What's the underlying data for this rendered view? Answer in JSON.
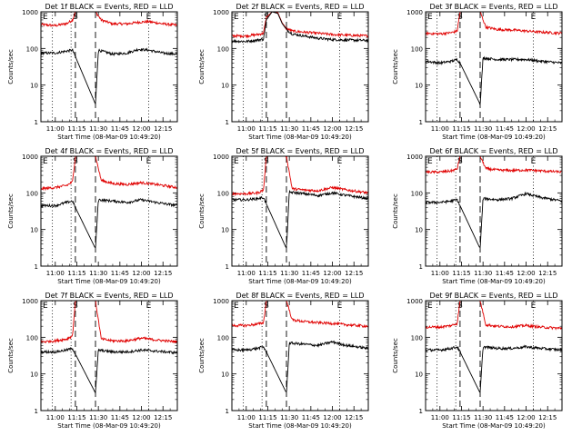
{
  "colors": {
    "events": "#000000",
    "lld": "#e00000",
    "frame": "#000000",
    "background": "#ffffff"
  },
  "chart_data": [
    {
      "type": "line",
      "title": "Det 1f BLACK = Events, RED = LLD",
      "xlabel": "Start Time (08-Mar-09 10:49:20)",
      "ylabel": "Counts/sec",
      "y_scale": "log",
      "ylim": [
        1,
        1000
      ],
      "xlim": [
        "10:50",
        "12:25"
      ],
      "xticks": [
        "11:00",
        "11:15",
        "11:30",
        "11:45",
        "12:00",
        "12:15"
      ],
      "yticks": [
        "1",
        "10",
        "100",
        "1000"
      ],
      "markers": {
        "E1": "E",
        "S": "S",
        "E2": "E"
      },
      "dotted_lines": [
        "10:58",
        "11:11",
        "12:05"
      ],
      "dashed_lines": [
        "11:14",
        "11:28"
      ],
      "series": [
        {
          "name": "LLD",
          "color": "#e00000",
          "x": [
            "10:50",
            "11:00",
            "11:08",
            "11:12",
            "11:14",
            "11:28",
            "11:32",
            "11:40",
            "11:50",
            "11:58",
            "12:05",
            "12:15",
            "12:25"
          ],
          "y": [
            450,
            420,
            480,
            600,
            1000,
            1000,
            600,
            470,
            470,
            520,
            540,
            470,
            430
          ]
        },
        {
          "name": "Events",
          "color": "#000000",
          "x": [
            "10:50",
            "11:00",
            "11:08",
            "11:12",
            "11:14",
            "11:28",
            "11:30",
            "11:40",
            "11:50",
            "11:58",
            "12:05",
            "12:15",
            "12:25"
          ],
          "y": [
            75,
            75,
            85,
            90,
            60,
            3,
            90,
            70,
            75,
            95,
            90,
            75,
            70
          ]
        }
      ]
    },
    {
      "type": "line",
      "title": "Det 2f BLACK = Events, RED = LLD",
      "xlabel": "Start Time (08-Mar-09 10:49:20)",
      "ylabel": "Counts/sec",
      "y_scale": "log",
      "ylim": [
        1,
        1000
      ],
      "xlim": [
        "10:50",
        "12:25"
      ],
      "xticks": [
        "11:00",
        "11:15",
        "11:30",
        "11:45",
        "12:00",
        "12:15"
      ],
      "yticks": [
        "1",
        "10",
        "100",
        "1000"
      ],
      "markers": {
        "E1": "E",
        "S": "S",
        "E2": "E"
      },
      "dotted_lines": [
        "10:58",
        "11:11",
        "12:05"
      ],
      "dashed_lines": [
        "11:14",
        "11:28"
      ],
      "series": [
        {
          "name": "LLD",
          "color": "#e00000",
          "x": [
            "10:50",
            "11:00",
            "11:08",
            "11:12",
            "11:14",
            "11:18",
            "11:22",
            "11:25",
            "11:28",
            "11:32",
            "11:40",
            "11:50",
            "12:00",
            "12:10",
            "12:25"
          ],
          "y": [
            220,
            220,
            240,
            260,
            700,
            1000,
            950,
            500,
            350,
            300,
            280,
            260,
            240,
            230,
            220
          ]
        },
        {
          "name": "Events",
          "color": "#000000",
          "x": [
            "10:50",
            "11:00",
            "11:08",
            "11:12",
            "11:14",
            "11:18",
            "11:22",
            "11:25",
            "11:28",
            "11:32",
            "11:40",
            "11:50",
            "12:00",
            "12:10",
            "12:25"
          ],
          "y": [
            160,
            155,
            170,
            180,
            600,
            1000,
            900,
            480,
            330,
            250,
            220,
            190,
            175,
            170,
            165
          ]
        }
      ]
    },
    {
      "type": "line",
      "title": "Det 3f BLACK = Events, RED = LLD",
      "xlabel": "Start Time (08-Mar-09 10:49:20)",
      "ylabel": "Counts/sec",
      "y_scale": "log",
      "ylim": [
        1,
        1000
      ],
      "xlim": [
        "10:50",
        "12:25"
      ],
      "xticks": [
        "11:00",
        "11:15",
        "11:30",
        "11:45",
        "12:00",
        "12:15"
      ],
      "yticks": [
        "1",
        "10",
        "100",
        "1000"
      ],
      "markers": {
        "E1": "E",
        "S": "S",
        "E2": "E"
      },
      "dotted_lines": [
        "10:58",
        "11:11",
        "12:05"
      ],
      "dashed_lines": [
        "11:14",
        "11:28"
      ],
      "series": [
        {
          "name": "LLD",
          "color": "#e00000",
          "x": [
            "10:50",
            "11:00",
            "11:08",
            "11:12",
            "11:14",
            "11:28",
            "11:32",
            "11:40",
            "11:50",
            "12:00",
            "12:10",
            "12:25"
          ],
          "y": [
            260,
            250,
            270,
            300,
            1000,
            1000,
            380,
            330,
            320,
            300,
            280,
            260
          ]
        },
        {
          "name": "Events",
          "color": "#000000",
          "x": [
            "10:50",
            "11:00",
            "11:08",
            "11:12",
            "11:14",
            "11:28",
            "11:30",
            "11:40",
            "11:50",
            "12:00",
            "12:10",
            "12:25"
          ],
          "y": [
            45,
            40,
            45,
            50,
            40,
            3,
            55,
            50,
            50,
            50,
            45,
            40
          ]
        }
      ]
    },
    {
      "type": "line",
      "title": "Det 4f BLACK = Events, RED = LLD",
      "xlabel": "Start Time (08-Mar-09 10:49:20)",
      "ylabel": "Counts/sec",
      "y_scale": "log",
      "ylim": [
        1,
        1000
      ],
      "xlim": [
        "10:50",
        "12:25"
      ],
      "xticks": [
        "11:00",
        "11:15",
        "11:30",
        "11:45",
        "12:00",
        "12:15"
      ],
      "yticks": [
        "1",
        "10",
        "100",
        "1000"
      ],
      "markers": {
        "E1": "E",
        "S": "S",
        "E2": "E"
      },
      "dotted_lines": [
        "10:58",
        "11:11",
        "12:05"
      ],
      "dashed_lines": [
        "11:14",
        "11:28"
      ],
      "series": [
        {
          "name": "LLD",
          "color": "#e00000",
          "x": [
            "10:50",
            "11:00",
            "11:08",
            "11:12",
            "11:14",
            "11:28",
            "11:32",
            "11:40",
            "11:50",
            "12:00",
            "12:10",
            "12:25"
          ],
          "y": [
            130,
            140,
            160,
            200,
            1000,
            1000,
            220,
            180,
            170,
            190,
            170,
            140
          ]
        },
        {
          "name": "Events",
          "color": "#000000",
          "x": [
            "10:50",
            "11:00",
            "11:08",
            "11:12",
            "11:14",
            "11:28",
            "11:30",
            "11:40",
            "11:50",
            "12:00",
            "12:10",
            "12:25"
          ],
          "y": [
            45,
            45,
            55,
            60,
            40,
            3,
            65,
            60,
            55,
            65,
            55,
            45
          ]
        }
      ]
    },
    {
      "type": "line",
      "title": "Det 5f BLACK = Events, RED = LLD",
      "xlabel": "Start Time (08-Mar-09 10:49:20)",
      "ylabel": "Counts/sec",
      "y_scale": "log",
      "ylim": [
        1,
        1000
      ],
      "xlim": [
        "10:50",
        "12:25"
      ],
      "xticks": [
        "11:00",
        "11:15",
        "11:30",
        "11:45",
        "12:00",
        "12:15"
      ],
      "yticks": [
        "1",
        "10",
        "100",
        "1000"
      ],
      "markers": {
        "E1": "E",
        "S": "S",
        "E2": "E"
      },
      "dotted_lines": [
        "10:58",
        "11:11",
        "12:05"
      ],
      "dashed_lines": [
        "11:14",
        "11:28"
      ],
      "series": [
        {
          "name": "LLD",
          "color": "#e00000",
          "x": [
            "10:50",
            "11:00",
            "11:08",
            "11:12",
            "11:14",
            "11:28",
            "11:32",
            "11:40",
            "11:50",
            "12:00",
            "12:10",
            "12:25"
          ],
          "y": [
            95,
            95,
            100,
            120,
            1000,
            1000,
            130,
            120,
            115,
            140,
            120,
            100
          ]
        },
        {
          "name": "Events",
          "color": "#000000",
          "x": [
            "10:50",
            "11:00",
            "11:08",
            "11:12",
            "11:14",
            "11:28",
            "11:30",
            "11:40",
            "11:50",
            "12:00",
            "12:10",
            "12:25"
          ],
          "y": [
            65,
            65,
            70,
            75,
            50,
            3,
            105,
            95,
            85,
            100,
            85,
            70
          ]
        }
      ]
    },
    {
      "type": "line",
      "title": "Det 6f BLACK = Events, RED = LLD",
      "xlabel": "Start Time (08-Mar-09 10:49:20)",
      "ylabel": "Counts/sec",
      "y_scale": "log",
      "ylim": [
        1,
        1000
      ],
      "xlim": [
        "10:50",
        "12:25"
      ],
      "xticks": [
        "11:00",
        "11:15",
        "11:30",
        "11:45",
        "12:00",
        "12:15"
      ],
      "yticks": [
        "1",
        "10",
        "100",
        "1000"
      ],
      "markers": {
        "E1": "E",
        "S": "S",
        "E2": "E"
      },
      "dotted_lines": [
        "10:58",
        "11:11",
        "12:05"
      ],
      "dashed_lines": [
        "11:14",
        "11:28"
      ],
      "series": [
        {
          "name": "LLD",
          "color": "#e00000",
          "x": [
            "10:50",
            "11:00",
            "11:08",
            "11:12",
            "11:14",
            "11:28",
            "11:32",
            "11:40",
            "11:50",
            "12:00",
            "12:10",
            "12:25"
          ],
          "y": [
            370,
            370,
            400,
            450,
            1000,
            1000,
            460,
            420,
            410,
            420,
            400,
            370
          ]
        },
        {
          "name": "Events",
          "color": "#000000",
          "x": [
            "10:50",
            "11:00",
            "11:08",
            "11:12",
            "11:14",
            "11:28",
            "11:30",
            "11:40",
            "11:50",
            "12:00",
            "12:10",
            "12:25"
          ],
          "y": [
            55,
            55,
            60,
            65,
            45,
            3,
            70,
            65,
            70,
            95,
            75,
            60
          ]
        }
      ]
    },
    {
      "type": "line",
      "title": "Det 7f BLACK = Events, RED = LLD",
      "xlabel": "Start Time (08-Mar-09 10:49:20)",
      "ylabel": "Counts/sec",
      "y_scale": "log",
      "ylim": [
        1,
        1000
      ],
      "xlim": [
        "10:50",
        "12:25"
      ],
      "xticks": [
        "11:00",
        "11:15",
        "11:30",
        "11:45",
        "12:00",
        "12:15"
      ],
      "yticks": [
        "1",
        "10",
        "100",
        "1000"
      ],
      "markers": {
        "E1": "E",
        "S": "S",
        "E2": "E"
      },
      "dotted_lines": [
        "10:58",
        "11:11",
        "12:05"
      ],
      "dashed_lines": [
        "11:14",
        "11:28"
      ],
      "series": [
        {
          "name": "LLD",
          "color": "#e00000",
          "x": [
            "10:50",
            "11:00",
            "11:08",
            "11:12",
            "11:14",
            "11:28",
            "11:32",
            "11:40",
            "11:50",
            "12:00",
            "12:10",
            "12:25"
          ],
          "y": [
            75,
            80,
            90,
            110,
            1000,
            1000,
            90,
            80,
            80,
            95,
            85,
            75
          ]
        },
        {
          "name": "Events",
          "color": "#000000",
          "x": [
            "10:50",
            "11:00",
            "11:08",
            "11:12",
            "11:14",
            "11:28",
            "11:30",
            "11:40",
            "11:50",
            "12:00",
            "12:10",
            "12:25"
          ],
          "y": [
            40,
            40,
            45,
            50,
            35,
            3,
            45,
            40,
            40,
            45,
            42,
            38
          ]
        }
      ]
    },
    {
      "type": "line",
      "title": "Det 8f BLACK = Events, RED = LLD",
      "xlabel": "Start Time (08-Mar-09 10:49:20)",
      "ylabel": "Counts/sec",
      "y_scale": "log",
      "ylim": [
        1,
        1000
      ],
      "xlim": [
        "10:50",
        "12:25"
      ],
      "xticks": [
        "11:00",
        "11:15",
        "11:30",
        "11:45",
        "12:00",
        "12:15"
      ],
      "yticks": [
        "1",
        "10",
        "100",
        "1000"
      ],
      "markers": {
        "E1": "E",
        "S": "S",
        "E2": "E"
      },
      "dotted_lines": [
        "10:58",
        "11:11",
        "12:05"
      ],
      "dashed_lines": [
        "11:14",
        "11:28"
      ],
      "series": [
        {
          "name": "LLD",
          "color": "#e00000",
          "x": [
            "10:50",
            "11:00",
            "11:08",
            "11:12",
            "11:14",
            "11:28",
            "11:32",
            "11:40",
            "11:50",
            "12:00",
            "12:10",
            "12:25"
          ],
          "y": [
            210,
            210,
            230,
            250,
            1000,
            1000,
            300,
            270,
            250,
            240,
            220,
            200
          ]
        },
        {
          "name": "Events",
          "color": "#000000",
          "x": [
            "10:50",
            "11:00",
            "11:08",
            "11:12",
            "11:14",
            "11:28",
            "11:30",
            "11:40",
            "11:50",
            "12:00",
            "12:10",
            "12:25"
          ],
          "y": [
            45,
            45,
            50,
            55,
            40,
            3,
            70,
            65,
            60,
            75,
            60,
            50
          ]
        }
      ]
    },
    {
      "type": "line",
      "title": "Det 9f BLACK = Events, RED = LLD",
      "xlabel": "Start Time (08-Mar-09 10:49:20)",
      "ylabel": "Counts/sec",
      "y_scale": "log",
      "ylim": [
        1,
        1000
      ],
      "xlim": [
        "10:50",
        "12:25"
      ],
      "xticks": [
        "11:00",
        "11:15",
        "11:30",
        "11:45",
        "12:00",
        "12:15"
      ],
      "yticks": [
        "1",
        "10",
        "100",
        "1000"
      ],
      "markers": {
        "E1": "E",
        "S": "S",
        "E2": "E"
      },
      "dotted_lines": [
        "10:58",
        "11:11",
        "12:05"
      ],
      "dashed_lines": [
        "11:14",
        "11:28"
      ],
      "series": [
        {
          "name": "LLD",
          "color": "#e00000",
          "x": [
            "10:50",
            "11:00",
            "11:08",
            "11:12",
            "11:14",
            "11:28",
            "11:32",
            "11:40",
            "11:50",
            "12:00",
            "12:10",
            "12:25"
          ],
          "y": [
            190,
            190,
            210,
            240,
            1000,
            1000,
            220,
            200,
            195,
            210,
            190,
            175
          ]
        },
        {
          "name": "Events",
          "color": "#000000",
          "x": [
            "10:50",
            "11:00",
            "11:08",
            "11:12",
            "11:14",
            "11:28",
            "11:30",
            "11:40",
            "11:50",
            "12:00",
            "12:10",
            "12:25"
          ],
          "y": [
            45,
            45,
            50,
            55,
            40,
            3,
            55,
            50,
            50,
            55,
            50,
            45
          ]
        }
      ]
    }
  ]
}
